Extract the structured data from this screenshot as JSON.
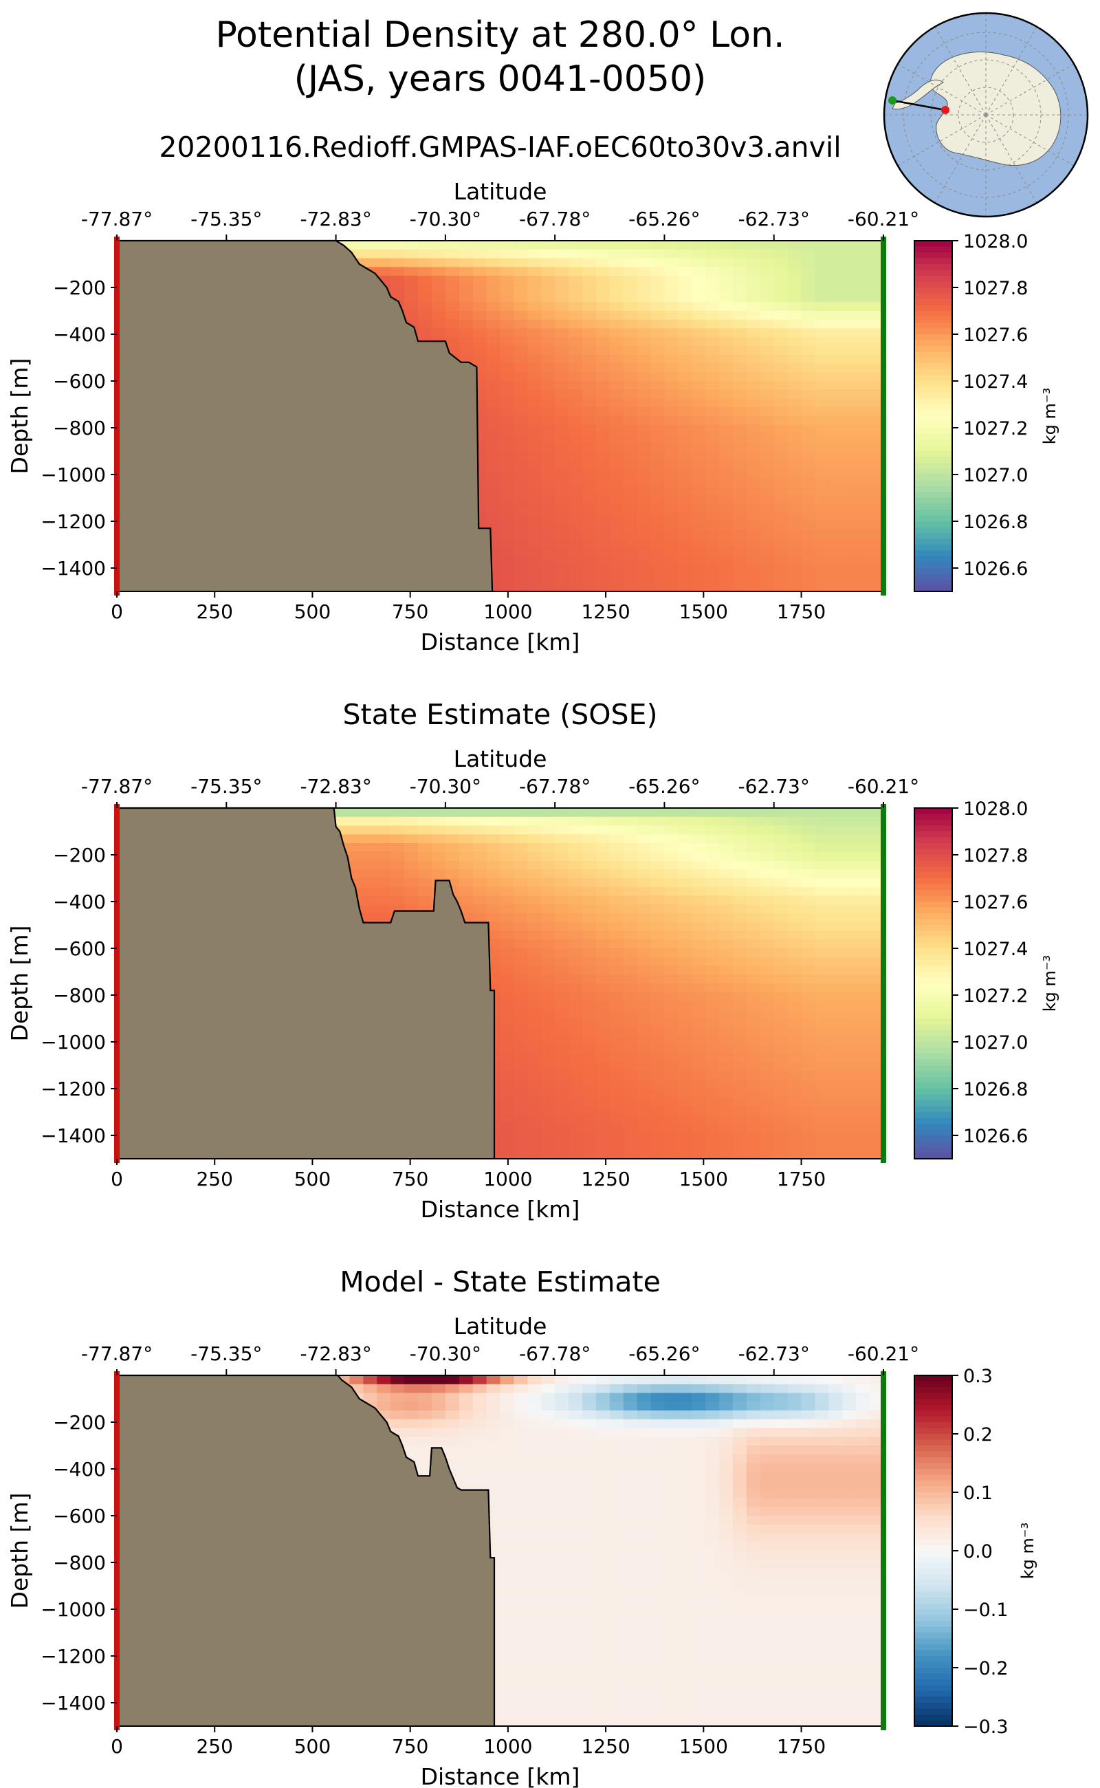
{
  "figure": {
    "title_line1": "Potential Density at 280.0° Lon.",
    "title_line2": "(JAS, years 0041-0050)",
    "run_name": "20200116.Redioff.GMPAS-IAF.oEC60to30v3.anvil",
    "inset_map": {
      "description_icon": "antarctic-polar-stereographic-map-icon",
      "ocean_color": "#9bb9e0",
      "land_color": "#efeedd",
      "start_marker_color": "#e41a1c",
      "end_marker_color": "#1a9a1a"
    },
    "colors": {
      "land": "#8c7f67",
      "start_edge": "#cc1111",
      "end_edge": "#0c7a0c"
    }
  },
  "chart_data": [
    {
      "type": "heatmap",
      "title": "",
      "xlabel": "Distance [km]",
      "ylabel": "Depth [m]",
      "top_axis_label": "Latitude",
      "top_tick_labels": [
        "-77.87°",
        "-75.35°",
        "-72.83°",
        "-70.30°",
        "-67.78°",
        "-65.26°",
        "-62.73°",
        "-60.21°"
      ],
      "top_tick_positions_km": [
        0,
        280,
        560,
        840,
        1120,
        1400,
        1680,
        1960
      ],
      "x_ticks": [
        0,
        250,
        500,
        750,
        1000,
        1250,
        1500,
        1750
      ],
      "y_ticks": [
        -200,
        -400,
        -600,
        -800,
        -1000,
        -1200,
        -1400
      ],
      "xlim": [
        0,
        1960
      ],
      "ylim": [
        -1500,
        0
      ],
      "colorbar": {
        "label": "kg m⁻³",
        "range": [
          1026.5,
          1028.0
        ],
        "ticks": [
          1026.6,
          1026.8,
          1027.0,
          1027.2,
          1027.4,
          1027.6,
          1027.8,
          1028.0
        ],
        "tick_labels": [
          "1026.6",
          "1026.8",
          "1027.0",
          "1027.2",
          "1027.4",
          "1027.6",
          "1027.8",
          "1028.0"
        ],
        "colormap": "Spectral_r"
      },
      "bathymetry_km_depth": [
        [
          0,
          0
        ],
        [
          560,
          0
        ],
        [
          580,
          -20
        ],
        [
          600,
          -50
        ],
        [
          620,
          -100
        ],
        [
          660,
          -140
        ],
        [
          690,
          -200
        ],
        [
          700,
          -240
        ],
        [
          720,
          -260
        ],
        [
          730,
          -300
        ],
        [
          740,
          -350
        ],
        [
          760,
          -370
        ],
        [
          770,
          -430
        ],
        [
          840,
          -430
        ],
        [
          850,
          -480
        ],
        [
          880,
          -520
        ],
        [
          900,
          -520
        ],
        [
          920,
          -540
        ],
        [
          925,
          -1230
        ],
        [
          955,
          -1230
        ],
        [
          960,
          -1500
        ]
      ],
      "density_profile_near_shelf_at_depth": [
        [
          -10,
          1027.15
        ],
        [
          -50,
          1027.35
        ],
        [
          -150,
          1027.75
        ],
        [
          -600,
          1027.8
        ],
        [
          -1400,
          1027.82
        ]
      ],
      "density_profile_offshore_at_depth": [
        [
          -10,
          1027.05
        ],
        [
          -100,
          1027.05
        ],
        [
          -250,
          1027.05
        ],
        [
          -400,
          1027.35
        ],
        [
          -800,
          1027.55
        ],
        [
          -1400,
          1027.65
        ]
      ]
    },
    {
      "type": "heatmap",
      "title": "State Estimate (SOSE)",
      "xlabel": "Distance [km]",
      "ylabel": "Depth [m]",
      "top_axis_label": "Latitude",
      "top_tick_labels": [
        "-77.87°",
        "-75.35°",
        "-72.83°",
        "-70.30°",
        "-67.78°",
        "-65.26°",
        "-62.73°",
        "-60.21°"
      ],
      "top_tick_positions_km": [
        0,
        280,
        560,
        840,
        1120,
        1400,
        1680,
        1960
      ],
      "x_ticks": [
        0,
        250,
        500,
        750,
        1000,
        1250,
        1500,
        1750
      ],
      "y_ticks": [
        -200,
        -400,
        -600,
        -800,
        -1000,
        -1200,
        -1400
      ],
      "xlim": [
        0,
        1960
      ],
      "ylim": [
        -1500,
        0
      ],
      "colorbar": {
        "label": "kg m⁻³",
        "range": [
          1026.5,
          1028.0
        ],
        "ticks": [
          1026.6,
          1026.8,
          1027.0,
          1027.2,
          1027.4,
          1027.6,
          1027.8,
          1028.0
        ],
        "tick_labels": [
          "1026.6",
          "1026.8",
          "1027.0",
          "1027.2",
          "1027.4",
          "1027.6",
          "1027.8",
          "1028.0"
        ],
        "colormap": "Spectral_r"
      },
      "bathymetry_km_depth": [
        [
          0,
          0
        ],
        [
          555,
          0
        ],
        [
          560,
          -80
        ],
        [
          570,
          -100
        ],
        [
          580,
          -160
        ],
        [
          590,
          -210
        ],
        [
          600,
          -300
        ],
        [
          610,
          -340
        ],
        [
          620,
          -430
        ],
        [
          630,
          -490
        ],
        [
          700,
          -490
        ],
        [
          710,
          -440
        ],
        [
          810,
          -440
        ],
        [
          815,
          -310
        ],
        [
          850,
          -310
        ],
        [
          860,
          -370
        ],
        [
          870,
          -400
        ],
        [
          880,
          -440
        ],
        [
          890,
          -490
        ],
        [
          950,
          -490
        ],
        [
          955,
          -780
        ],
        [
          965,
          -780
        ],
        [
          965,
          -1500
        ]
      ],
      "density_profile_near_shelf_at_depth": [
        [
          -10,
          1026.9
        ],
        [
          -50,
          1027.3
        ],
        [
          -150,
          1027.6
        ],
        [
          -600,
          1027.75
        ],
        [
          -1400,
          1027.8
        ]
      ],
      "density_profile_offshore_at_depth": [
        [
          -10,
          1027.0
        ],
        [
          -200,
          1027.1
        ],
        [
          -400,
          1027.35
        ],
        [
          -800,
          1027.55
        ],
        [
          -1400,
          1027.65
        ]
      ]
    },
    {
      "type": "heatmap",
      "title": "Model - State Estimate",
      "xlabel": "Distance [km]",
      "ylabel": "Depth [m]",
      "top_axis_label": "Latitude",
      "top_tick_labels": [
        "-77.87°",
        "-75.35°",
        "-72.83°",
        "-70.30°",
        "-67.78°",
        "-65.26°",
        "-62.73°",
        "-60.21°"
      ],
      "top_tick_positions_km": [
        0,
        280,
        560,
        840,
        1120,
        1400,
        1680,
        1960
      ],
      "x_ticks": [
        0,
        250,
        500,
        750,
        1000,
        1250,
        1500,
        1750
      ],
      "y_ticks": [
        -200,
        -400,
        -600,
        -800,
        -1000,
        -1200,
        -1400
      ],
      "xlim": [
        0,
        1960
      ],
      "ylim": [
        -1500,
        0
      ],
      "colorbar": {
        "label": "kg m⁻³",
        "range": [
          -0.3,
          0.3
        ],
        "ticks": [
          -0.3,
          -0.2,
          -0.1,
          0.0,
          0.1,
          0.2,
          0.3
        ],
        "tick_labels": [
          "−0.3",
          "−0.2",
          "−0.1",
          "0.0",
          "0.1",
          "0.2",
          "0.3"
        ],
        "colormap": "RdBu_r"
      },
      "bathymetry_km_depth": [
        [
          0,
          0
        ],
        [
          565,
          0
        ],
        [
          575,
          -20
        ],
        [
          600,
          -50
        ],
        [
          620,
          -100
        ],
        [
          660,
          -140
        ],
        [
          690,
          -200
        ],
        [
          700,
          -240
        ],
        [
          720,
          -260
        ],
        [
          730,
          -300
        ],
        [
          740,
          -350
        ],
        [
          760,
          -370
        ],
        [
          770,
          -430
        ],
        [
          800,
          -430
        ],
        [
          805,
          -310
        ],
        [
          830,
          -310
        ],
        [
          840,
          -350
        ],
        [
          850,
          -400
        ],
        [
          870,
          -480
        ],
        [
          880,
          -490
        ],
        [
          950,
          -490
        ],
        [
          955,
          -780
        ],
        [
          965,
          -780
        ],
        [
          965,
          -1500
        ]
      ],
      "difference_features": [
        {
          "feature": "strong positive near surface at shelf break",
          "x_km": [
            600,
            1000
          ],
          "depth_m": [
            0,
            -40
          ],
          "value": 0.28
        },
        {
          "feature": "negative subsurface band",
          "x_km": [
            1100,
            1800
          ],
          "depth_m": [
            -60,
            -200
          ],
          "value": -0.22
        },
        {
          "feature": "weak positive offshore below 250 m",
          "x_km": [
            1650,
            1960
          ],
          "depth_m": [
            -250,
            -650
          ],
          "value": 0.08
        },
        {
          "feature": "near-zero interior",
          "x_km": [
            960,
            1960
          ],
          "depth_m": [
            -700,
            -1500
          ],
          "value": 0.02
        }
      ]
    }
  ]
}
